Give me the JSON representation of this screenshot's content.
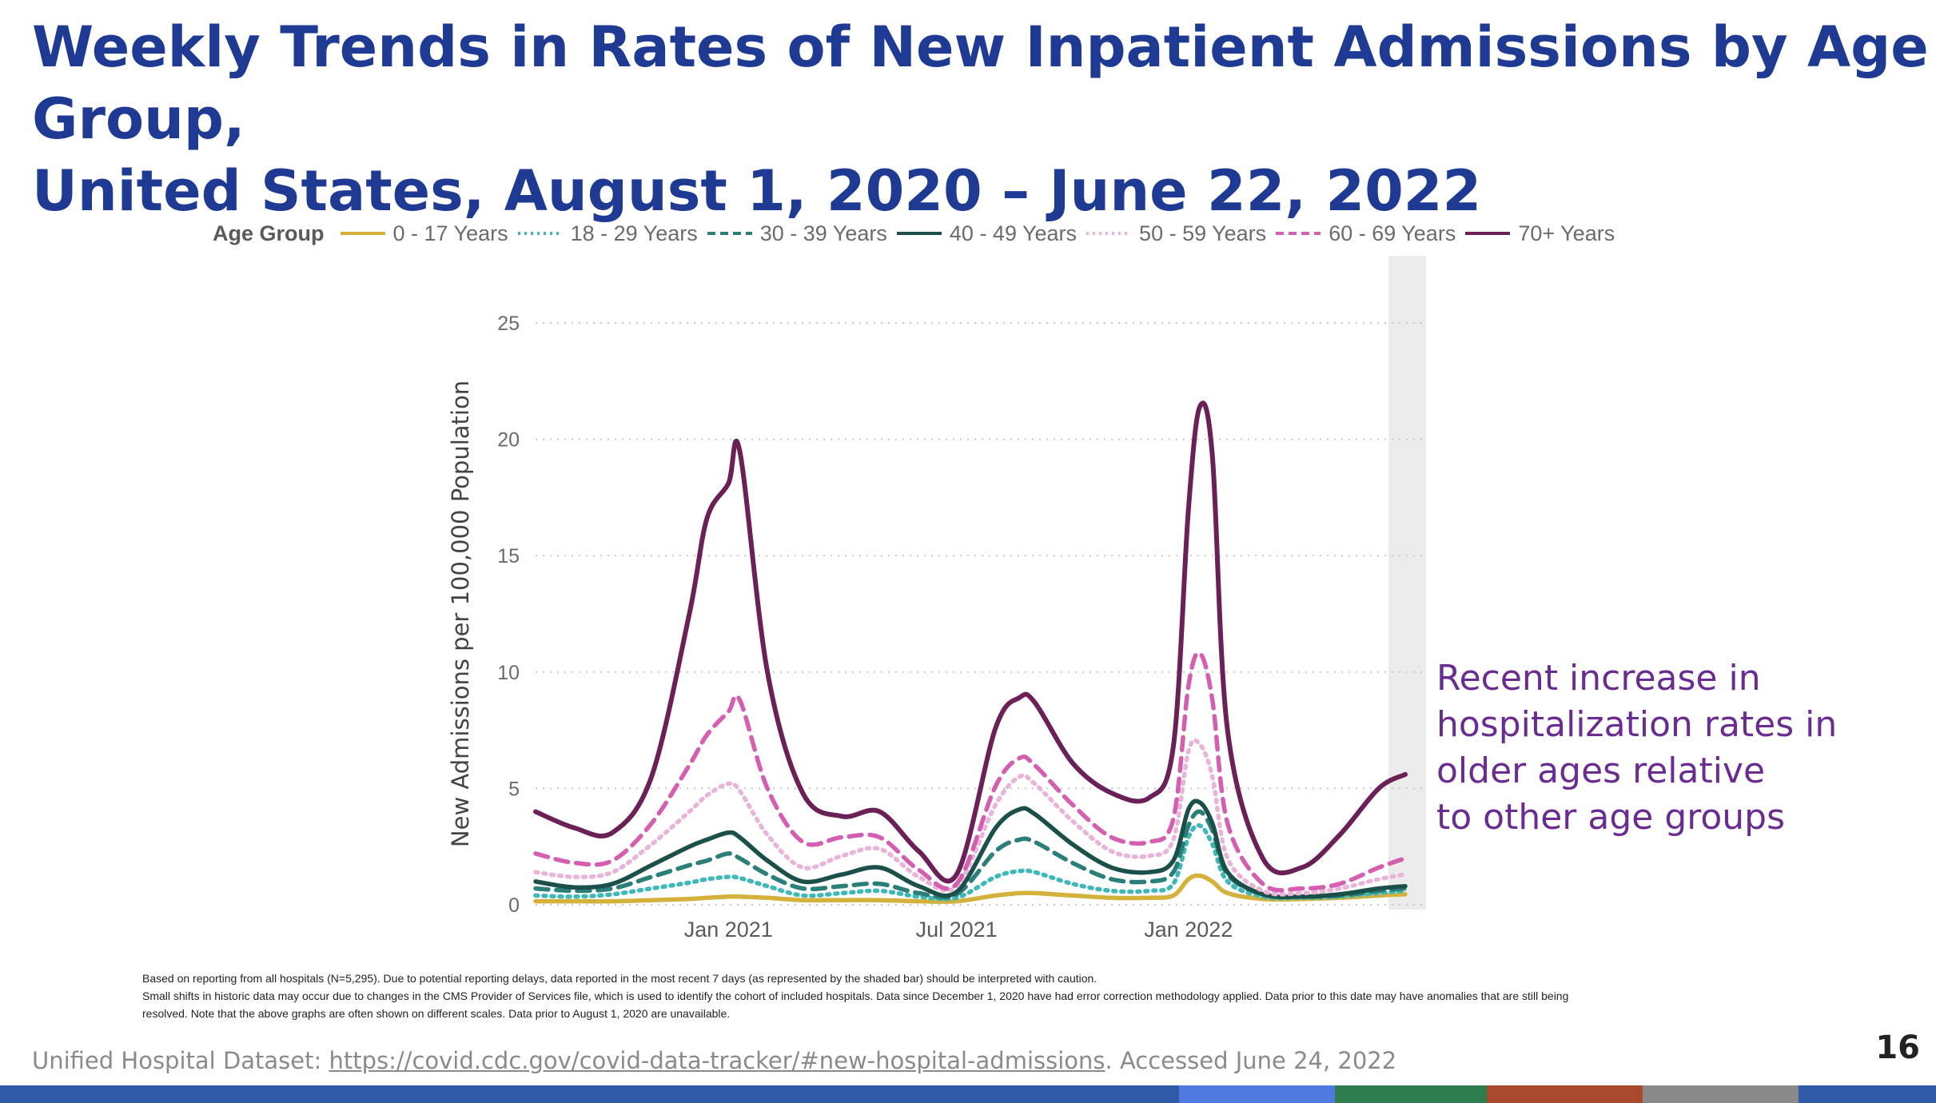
{
  "slide": {
    "title_line1": "Weekly Trends in Rates of New Inpatient Admissions by Age Group,",
    "title_line2": "United States, August 1, 2020 – June 22, 2022",
    "page_number": "16",
    "annotation": [
      "Recent increase in",
      "hospitalization rates in",
      "older ages relative",
      "to other age groups"
    ],
    "footnote": [
      "Based on reporting from all hospitals (N=5,295). Due to potential reporting delays, data reported in the most recent 7 days (as represented by the shaded bar) should be interpreted with caution.",
      "Small shifts in historic data may occur due to changes in the CMS Provider of Services file, which is used to identify the cohort of included hospitals. Data since December 1, 2020 have had error correction methodology applied. Data prior to this date may have anomalies that are still being",
      "resolved. Note that the above graphs are often shown on different scales. Data prior to August 1, 2020 are unavailable."
    ],
    "source_prefix": "Unified Hospital Dataset: ",
    "source_link": "https://covid.cdc.gov/covid-data-tracker/#new-hospital-admissions",
    "source_suffix": ". Accessed June 24, 2022",
    "colors": {
      "title": "#1f3a93",
      "annotation": "#6a2c91",
      "bottom_bar": [
        "#2e5aa8",
        "#2e5aa8",
        "#4f7be0",
        "#2e7d4f",
        "#a84a2e",
        "#8a8a8a",
        "#2e5aa8"
      ]
    }
  },
  "chart_data": {
    "type": "line",
    "legend_title": "Age Group",
    "legend_position": "top",
    "ylabel": "New Admissions per 100,000 Population",
    "xlabel": "",
    "ylim": [
      0,
      25
    ],
    "yticks": [
      0,
      5,
      10,
      15,
      20,
      25
    ],
    "xlim": [
      "2020-08-01",
      "2022-06-22"
    ],
    "xticks": [
      {
        "date": "2021-01-01",
        "label": "Jan 2021"
      },
      {
        "date": "2021-07-01",
        "label": "Jul 2021"
      },
      {
        "date": "2022-01-01",
        "label": "Jan 2022"
      }
    ],
    "grid": "horizontal dotted",
    "shaded_period": [
      "2022-06-15",
      "2022-06-22"
    ],
    "x": [
      "2020-08-01",
      "2020-09-01",
      "2020-10-01",
      "2020-11-01",
      "2020-12-01",
      "2020-12-15",
      "2021-01-01",
      "2021-01-10",
      "2021-02-01",
      "2021-03-01",
      "2021-04-01",
      "2021-05-01",
      "2021-06-01",
      "2021-07-01",
      "2021-08-01",
      "2021-08-20",
      "2021-09-01",
      "2021-10-01",
      "2021-11-01",
      "2021-12-01",
      "2021-12-20",
      "2022-01-01",
      "2022-01-10",
      "2022-01-20",
      "2022-02-01",
      "2022-03-01",
      "2022-04-01",
      "2022-05-01",
      "2022-06-01",
      "2022-06-22"
    ],
    "series": [
      {
        "name": "0 - 17 Years",
        "color": "#d4b13a",
        "style": "solid",
        "values": [
          0.15,
          0.15,
          0.15,
          0.2,
          0.25,
          0.3,
          0.35,
          0.35,
          0.3,
          0.2,
          0.2,
          0.2,
          0.15,
          0.15,
          0.4,
          0.5,
          0.5,
          0.4,
          0.3,
          0.3,
          0.4,
          1.1,
          1.25,
          1.0,
          0.5,
          0.25,
          0.25,
          0.3,
          0.4,
          0.45
        ]
      },
      {
        "name": "18 - 29 Years",
        "color": "#3fb8b8",
        "style": "dotted",
        "values": [
          0.4,
          0.35,
          0.45,
          0.7,
          0.95,
          1.1,
          1.2,
          1.15,
          0.8,
          0.4,
          0.5,
          0.6,
          0.35,
          0.3,
          1.2,
          1.45,
          1.4,
          0.9,
          0.6,
          0.6,
          0.9,
          2.9,
          3.4,
          2.6,
          1.0,
          0.35,
          0.3,
          0.35,
          0.5,
          0.6
        ]
      },
      {
        "name": "30 - 39 Years",
        "color": "#2a7f78",
        "style": "dashed",
        "values": [
          0.7,
          0.6,
          0.7,
          1.2,
          1.7,
          1.9,
          2.2,
          2.0,
          1.3,
          0.7,
          0.8,
          0.9,
          0.5,
          0.45,
          2.3,
          2.8,
          2.7,
          1.8,
          1.1,
          1.0,
          1.4,
          3.4,
          4.0,
          3.2,
          1.3,
          0.45,
          0.35,
          0.4,
          0.6,
          0.7
        ]
      },
      {
        "name": "40 - 49 Years",
        "color": "#1a4f4a",
        "style": "solid",
        "values": [
          1.0,
          0.75,
          0.9,
          1.7,
          2.5,
          2.8,
          3.1,
          2.9,
          1.9,
          1.0,
          1.3,
          1.6,
          0.8,
          0.55,
          3.3,
          4.1,
          3.9,
          2.6,
          1.6,
          1.4,
          1.9,
          4.1,
          4.4,
          3.5,
          1.4,
          0.45,
          0.35,
          0.45,
          0.7,
          0.8
        ]
      },
      {
        "name": "50 - 59 Years",
        "color": "#e8b4d8",
        "style": "dotted",
        "values": [
          1.4,
          1.2,
          1.4,
          2.6,
          4.0,
          4.7,
          5.2,
          4.9,
          3.0,
          1.6,
          2.1,
          2.4,
          1.2,
          0.8,
          4.3,
          5.5,
          5.2,
          3.6,
          2.3,
          2.1,
          2.8,
          6.6,
          6.9,
          5.5,
          2.0,
          0.6,
          0.5,
          0.7,
          1.1,
          1.3
        ]
      },
      {
        "name": "60 - 69 Years",
        "color": "#d45fb0",
        "style": "dashed",
        "values": [
          2.2,
          1.8,
          1.9,
          3.5,
          6.0,
          7.3,
          8.3,
          8.8,
          5.0,
          2.7,
          2.9,
          2.9,
          1.5,
          0.9,
          5.1,
          6.3,
          6.0,
          4.3,
          2.9,
          2.7,
          3.7,
          9.4,
          10.8,
          8.8,
          3.5,
          0.9,
          0.7,
          0.9,
          1.6,
          2.0
        ]
      },
      {
        "name": "70+ Years",
        "color": "#6b2157",
        "style": "solid",
        "values": [
          4.0,
          3.3,
          3.1,
          5.5,
          12.5,
          16.6,
          18.1,
          19.5,
          10.0,
          4.8,
          3.8,
          4.0,
          2.3,
          1.3,
          7.6,
          8.9,
          8.7,
          6.1,
          4.8,
          4.6,
          6.8,
          17.0,
          21.4,
          19.3,
          7.5,
          2.0,
          1.6,
          3.0,
          5.0,
          5.6
        ]
      }
    ]
  }
}
